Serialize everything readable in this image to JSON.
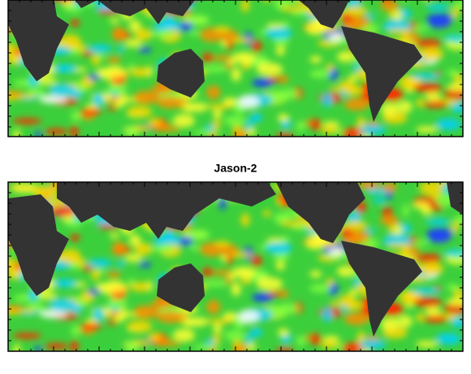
{
  "bottom_panel": {
    "title": "Jason-2"
  }
}
